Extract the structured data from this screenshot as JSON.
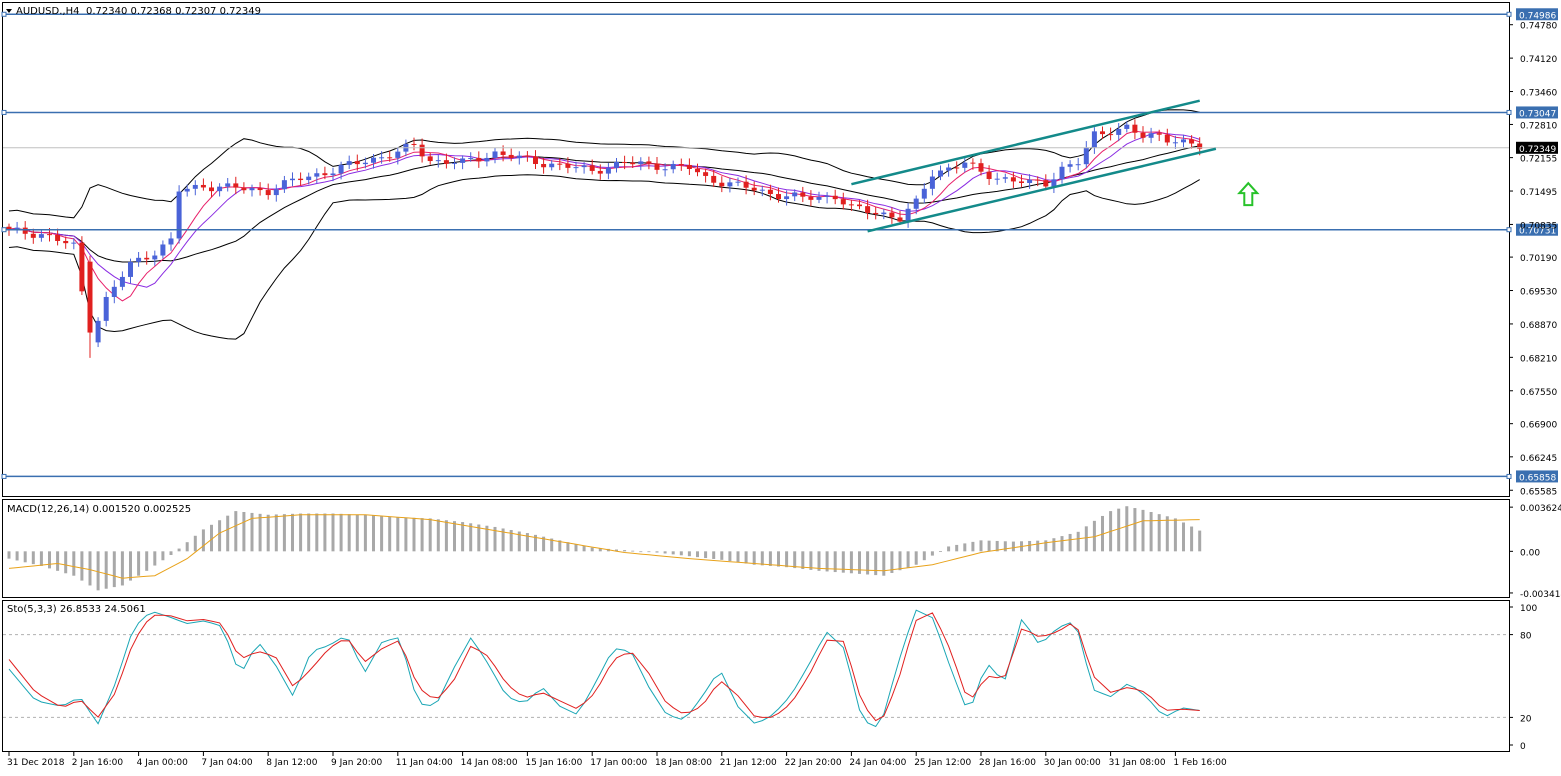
{
  "header": {
    "symbol": "AUDUSD.,H4",
    "ohlc": "0.72340 0.72368 0.72307 0.72349"
  },
  "colors": {
    "bull": "#4a63d8",
    "bear": "#e0201f",
    "level_line": "#3a6fb0",
    "channel": "#138a8a",
    "arrow": "#27c22a",
    "ma_fast": "#e8206a",
    "ma_slow": "#8a2be2",
    "bands": "#000000",
    "macd_hist": "#a8a8a8",
    "macd_signal": "#e8a21a",
    "sto_main": "#1aa6b5",
    "sto_signal": "#e0201f"
  },
  "chart_data": [
    {
      "type": "candlestick",
      "title": "AUDUSD.,H4",
      "price_axis_ticks": [
        "0.74780",
        "0.74120",
        "0.73460",
        "0.72810",
        "0.72155",
        "0.71495",
        "0.70835",
        "0.70190",
        "0.69530",
        "0.68870",
        "0.68210",
        "0.67550",
        "0.66900",
        "0.66245",
        "0.65585"
      ],
      "ylim": [
        0.6559,
        0.7511
      ],
      "horizontal_levels": [
        {
          "label": "0.74986",
          "value": 0.74986
        },
        {
          "label": "0.73047",
          "value": 0.73047
        },
        {
          "label": "0.70731",
          "value": 0.70731
        },
        {
          "label": "0.65858",
          "value": 0.65858
        }
      ],
      "current_price": {
        "label": "0.72349",
        "value": 0.72349
      },
      "x_tick_labels": [
        "31 Dec 2018",
        "2 Jan 16:00",
        "4 Jan 00:00",
        "7 Jan 04:00",
        "8 Jan 12:00",
        "9 Jan 20:00",
        "11 Jan 04:00",
        "14 Jan 08:00",
        "15 Jan 16:00",
        "17 Jan 00:00",
        "18 Jan 08:00",
        "21 Jan 12:00",
        "22 Jan 20:00",
        "24 Jan 04:00",
        "25 Jan 12:00",
        "28 Jan 16:00",
        "30 Jan 00:00",
        "31 Jan 08:00",
        "1 Feb 16:00"
      ],
      "bar_count": 148,
      "close_anchors": [
        [
          0,
          0.707
        ],
        [
          4,
          0.7065
        ],
        [
          8,
          0.704
        ],
        [
          10,
          0.686
        ],
        [
          12,
          0.6935
        ],
        [
          15,
          0.7005
        ],
        [
          18,
          0.703
        ],
        [
          20,
          0.705
        ],
        [
          21,
          0.715
        ],
        [
          24,
          0.716
        ],
        [
          28,
          0.7155
        ],
        [
          32,
          0.715
        ],
        [
          36,
          0.7175
        ],
        [
          40,
          0.719
        ],
        [
          44,
          0.721
        ],
        [
          48,
          0.7225
        ],
        [
          50,
          0.724
        ],
        [
          52,
          0.721
        ],
        [
          56,
          0.7205
        ],
        [
          60,
          0.7225
        ],
        [
          64,
          0.721
        ],
        [
          68,
          0.72
        ],
        [
          72,
          0.719
        ],
        [
          76,
          0.7205
        ],
        [
          80,
          0.72
        ],
        [
          84,
          0.7195
        ],
        [
          86,
          0.7175
        ],
        [
          90,
          0.716
        ],
        [
          94,
          0.7145
        ],
        [
          98,
          0.7135
        ],
        [
          102,
          0.714
        ],
        [
          104,
          0.7115
        ],
        [
          108,
          0.7105
        ],
        [
          110,
          0.7095
        ],
        [
          112,
          0.7125
        ],
        [
          114,
          0.7185
        ],
        [
          116,
          0.7195
        ],
        [
          118,
          0.7205
        ],
        [
          120,
          0.7185
        ],
        [
          124,
          0.717
        ],
        [
          126,
          0.7165
        ],
        [
          128,
          0.7165
        ],
        [
          130,
          0.7195
        ],
        [
          132,
          0.7205
        ],
        [
          134,
          0.726
        ],
        [
          136,
          0.727
        ],
        [
          138,
          0.7275
        ],
        [
          140,
          0.7255
        ],
        [
          142,
          0.726
        ],
        [
          144,
          0.725
        ],
        [
          146,
          0.724
        ],
        [
          147,
          0.7235
        ]
      ],
      "indicators": [
        "Bollinger Bands",
        "Moving Average (fast)",
        "Moving Average (slow)"
      ],
      "annotations": [
        "ascending channel",
        "up arrow"
      ]
    },
    {
      "type": "bar",
      "title": "MACD(12,26,14) 0.001520 0.002525",
      "y_ticks": [
        "0.003624",
        "0.00",
        "-0.003414"
      ],
      "ylim": [
        -0.0035,
        0.0038
      ],
      "hist_anchors": [
        [
          0,
          -0.0006
        ],
        [
          4,
          -0.0012
        ],
        [
          8,
          -0.002
        ],
        [
          11,
          -0.0032
        ],
        [
          14,
          -0.0028
        ],
        [
          17,
          -0.0016
        ],
        [
          20,
          -0.0003
        ],
        [
          24,
          0.0018
        ],
        [
          28,
          0.0033
        ],
        [
          32,
          0.003
        ],
        [
          36,
          0.0031
        ],
        [
          40,
          0.0031
        ],
        [
          44,
          0.003
        ],
        [
          48,
          0.0028
        ],
        [
          52,
          0.0027
        ],
        [
          56,
          0.0024
        ],
        [
          60,
          0.002
        ],
        [
          64,
          0.0015
        ],
        [
          68,
          0.0009
        ],
        [
          72,
          0.0003
        ],
        [
          76,
          0.0001
        ],
        [
          80,
          -0.0001
        ],
        [
          84,
          -0.0004
        ],
        [
          88,
          -0.0007
        ],
        [
          92,
          -0.0011
        ],
        [
          96,
          -0.0013
        ],
        [
          100,
          -0.0016
        ],
        [
          104,
          -0.0018
        ],
        [
          108,
          -0.002
        ],
        [
          112,
          -0.0011
        ],
        [
          116,
          0.0004
        ],
        [
          120,
          0.0009
        ],
        [
          124,
          0.0008
        ],
        [
          128,
          0.0009
        ],
        [
          132,
          0.0016
        ],
        [
          134,
          0.0025
        ],
        [
          136,
          0.0033
        ],
        [
          138,
          0.0037
        ],
        [
          140,
          0.0034
        ],
        [
          144,
          0.0027
        ],
        [
          147,
          0.0017
        ]
      ],
      "signal_anchors": [
        [
          0,
          -0.0014
        ],
        [
          6,
          -0.001
        ],
        [
          10,
          -0.0015
        ],
        [
          14,
          -0.0022
        ],
        [
          18,
          -0.002
        ],
        [
          22,
          -0.0006
        ],
        [
          26,
          0.0015
        ],
        [
          30,
          0.0027
        ],
        [
          36,
          0.003
        ],
        [
          44,
          0.003
        ],
        [
          52,
          0.0026
        ],
        [
          60,
          0.0017
        ],
        [
          68,
          0.0008
        ],
        [
          76,
          -0.0001
        ],
        [
          84,
          -0.0006
        ],
        [
          92,
          -0.001
        ],
        [
          100,
          -0.0014
        ],
        [
          108,
          -0.0016
        ],
        [
          114,
          -0.0011
        ],
        [
          120,
          -0.0001
        ],
        [
          128,
          0.0007
        ],
        [
          134,
          0.0012
        ],
        [
          140,
          0.0025
        ],
        [
          147,
          0.0026
        ]
      ]
    },
    {
      "type": "line",
      "title": "Sto(5,3,3) 26.8533 24.5061",
      "y_ticks": [
        "100",
        "80",
        "20",
        "0"
      ],
      "ylim": [
        0,
        100
      ],
      "levels": [
        80,
        20
      ],
      "series": [
        {
          "anchors": [
            [
              0,
              55
            ],
            [
              3,
              32
            ],
            [
              6,
              28
            ],
            [
              8,
              35
            ],
            [
              10,
              15
            ],
            [
              12,
              45
            ],
            [
              14,
              85
            ],
            [
              16,
              97
            ],
            [
              18,
              93
            ],
            [
              20,
              88
            ],
            [
              22,
              90
            ],
            [
              24,
              86
            ],
            [
              26,
              50
            ],
            [
              28,
              75
            ],
            [
              30,
              58
            ],
            [
              32,
              35
            ],
            [
              34,
              68
            ],
            [
              36,
              72
            ],
            [
              38,
              80
            ],
            [
              40,
              52
            ],
            [
              42,
              75
            ],
            [
              44,
              78
            ],
            [
              46,
              30
            ],
            [
              48,
              28
            ],
            [
              50,
              55
            ],
            [
              52,
              78
            ],
            [
              54,
              58
            ],
            [
              56,
              35
            ],
            [
              58,
              30
            ],
            [
              60,
              42
            ],
            [
              62,
              28
            ],
            [
              64,
              22
            ],
            [
              66,
              45
            ],
            [
              68,
              70
            ],
            [
              70,
              68
            ],
            [
              72,
              42
            ],
            [
              74,
              22
            ],
            [
              76,
              18
            ],
            [
              78,
              35
            ],
            [
              80,
              55
            ],
            [
              82,
              28
            ],
            [
              84,
              15
            ],
            [
              86,
              22
            ],
            [
              88,
              36
            ],
            [
              90,
              58
            ],
            [
              92,
              82
            ],
            [
              94,
              70
            ],
            [
              96,
              18
            ],
            [
              98,
              12
            ],
            [
              100,
              58
            ],
            [
              102,
              98
            ],
            [
              104,
              92
            ],
            [
              106,
              55
            ],
            [
              108,
              22
            ],
            [
              110,
              60
            ],
            [
              112,
              45
            ],
            [
              114,
              92
            ],
            [
              116,
              72
            ],
            [
              118,
              85
            ],
            [
              120,
              90
            ],
            [
              122,
              40
            ],
            [
              124,
              35
            ],
            [
              126,
              45
            ],
            [
              128,
              35
            ],
            [
              130,
              20
            ],
            [
              132,
              27
            ],
            [
              134,
              25
            ]
          ]
        },
        {
          "anchors": [
            [
              0,
              62
            ],
            [
              3,
              38
            ],
            [
              6,
              27
            ],
            [
              8,
              33
            ],
            [
              10,
              20
            ],
            [
              12,
              38
            ],
            [
              14,
              75
            ],
            [
              16,
              94
            ],
            [
              18,
              94
            ],
            [
              20,
              90
            ],
            [
              22,
              91
            ],
            [
              24,
              88
            ],
            [
              26,
              62
            ],
            [
              28,
              68
            ],
            [
              30,
              64
            ],
            [
              32,
              42
            ],
            [
              34,
              55
            ],
            [
              36,
              70
            ],
            [
              38,
              78
            ],
            [
              40,
              60
            ],
            [
              42,
              70
            ],
            [
              44,
              76
            ],
            [
              46,
              42
            ],
            [
              48,
              32
            ],
            [
              50,
              46
            ],
            [
              52,
              72
            ],
            [
              54,
              64
            ],
            [
              56,
              44
            ],
            [
              58,
              34
            ],
            [
              60,
              38
            ],
            [
              62,
              32
            ],
            [
              64,
              26
            ],
            [
              66,
              38
            ],
            [
              68,
              62
            ],
            [
              70,
              68
            ],
            [
              72,
              52
            ],
            [
              74,
              30
            ],
            [
              76,
              22
            ],
            [
              78,
              28
            ],
            [
              80,
              47
            ],
            [
              82,
              36
            ],
            [
              84,
              20
            ],
            [
              86,
              20
            ],
            [
              88,
              30
            ],
            [
              90,
              50
            ],
            [
              92,
              76
            ],
            [
              94,
              75
            ],
            [
              96,
              30
            ],
            [
              98,
              14
            ],
            [
              100,
              45
            ],
            [
              102,
              90
            ],
            [
              104,
              96
            ],
            [
              106,
              68
            ],
            [
              108,
              30
            ],
            [
              110,
              50
            ],
            [
              112,
              48
            ],
            [
              114,
              85
            ],
            [
              116,
              78
            ],
            [
              118,
              82
            ],
            [
              120,
              90
            ],
            [
              122,
              50
            ],
            [
              124,
              38
            ],
            [
              126,
              42
            ],
            [
              128,
              38
            ],
            [
              130,
              25
            ],
            [
              132,
              26
            ],
            [
              134,
              25
            ]
          ]
        }
      ]
    }
  ]
}
